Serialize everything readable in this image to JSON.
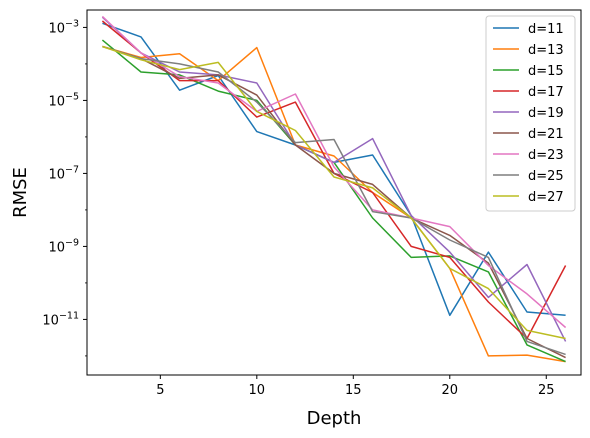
{
  "chart_data": {
    "type": "line",
    "title": "",
    "xlabel": "Depth",
    "ylabel": "RMSE",
    "xlim": [
      1.2,
      26.8
    ],
    "ylim": [
      3e-13,
      0.003
    ],
    "yscale": "log",
    "grid": false,
    "legend_position": "top-right",
    "x_ticks": [
      5,
      10,
      15,
      20,
      25
    ],
    "x_tick_labels": [
      "5",
      "10",
      "15",
      "20",
      "25"
    ],
    "y_ticks": [
      0.001,
      1e-05,
      1e-07,
      1e-09,
      1e-11
    ],
    "y_tick_labels": [
      "10−3",
      "10−5",
      "10−7",
      "10−9",
      "10−11"
    ],
    "x": [
      2,
      4,
      6,
      8,
      10,
      12,
      14,
      16,
      18,
      20,
      22,
      24,
      26
    ],
    "series": [
      {
        "name": "d=11",
        "color": "#1f77b4",
        "values": [
          0.0013,
          0.00055,
          1.9e-05,
          4.8e-05,
          1.4e-06,
          6e-07,
          2e-07,
          3.2e-07,
          7e-09,
          1.3e-11,
          7e-10,
          1.6e-11,
          1.3e-11
        ]
      },
      {
        "name": "d=13",
        "color": "#ff7f0e",
        "values": [
          0.0003,
          0.00015,
          0.00019,
          3.5e-05,
          0.00028,
          6e-07,
          3e-07,
          3e-08,
          6e-09,
          2.5e-10,
          1e-12,
          1.05e-12,
          7e-13
        ]
      },
      {
        "name": "d=15",
        "color": "#2ca02c",
        "values": [
          0.00045,
          6e-05,
          5e-05,
          1.8e-05,
          1e-05,
          6e-07,
          2e-07,
          6e-09,
          5e-10,
          5.5e-10,
          2e-10,
          2e-12,
          7e-13
        ]
      },
      {
        "name": "d=17",
        "color": "#d62728",
        "values": [
          0.0015,
          0.0002,
          3.5e-05,
          3.5e-05,
          3.5e-06,
          9e-06,
          1e-07,
          3e-08,
          1e-09,
          5e-10,
          3e-11,
          3e-12,
          3e-10
        ]
      },
      {
        "name": "d=19",
        "color": "#9467bd",
        "values": [
          0.0019,
          0.0002,
          6e-05,
          5e-05,
          3e-05,
          6e-07,
          2e-07,
          9e-07,
          7e-09,
          7e-10,
          4e-11,
          3.2e-10,
          2.5e-12
        ]
      },
      {
        "name": "d=21",
        "color": "#8c564b",
        "values": [
          0.0003,
          0.00014,
          4e-05,
          5e-05,
          1.4e-05,
          6e-07,
          1e-07,
          5e-08,
          6e-09,
          2e-09,
          3.5e-10,
          3e-12,
          9e-13
        ]
      },
      {
        "name": "d=23",
        "color": "#e377c2",
        "values": [
          0.002,
          0.0002,
          4.5e-05,
          3e-05,
          5e-06,
          1.5e-05,
          1.5e-07,
          1e-08,
          6e-09,
          3.5e-09,
          3e-10,
          5e-11,
          6e-12
        ]
      },
      {
        "name": "d=25",
        "color": "#7f7f7f",
        "values": [
          0.0003,
          0.00014,
          0.0001,
          6e-05,
          9e-06,
          7e-07,
          8.5e-07,
          9e-09,
          6e-09,
          1.5e-09,
          5e-10,
          2.5e-12,
          1.1e-12
        ]
      },
      {
        "name": "d=27",
        "color": "#bcbd22",
        "values": [
          0.0003,
          0.00013,
          7e-05,
          0.00011,
          5e-06,
          1.5e-06,
          8e-08,
          4e-08,
          6e-09,
          2.5e-10,
          7e-11,
          5e-12,
          3e-12
        ]
      }
    ]
  }
}
